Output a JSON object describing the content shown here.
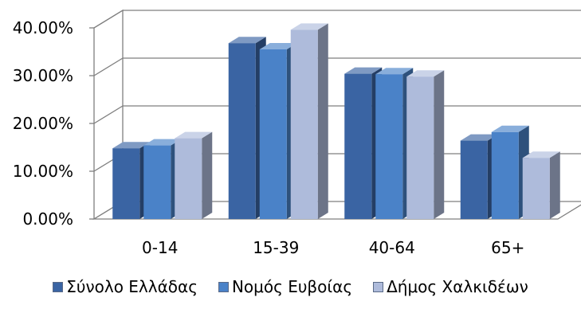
{
  "chart_data": {
    "type": "bar",
    "categories": [
      "0-14",
      "15-39",
      "40-64",
      "65+"
    ],
    "series": [
      {
        "name": "Σύνολο Ελλάδας",
        "color": "#3a64a3",
        "values": [
          14.8,
          36.8,
          30.4,
          16.4
        ]
      },
      {
        "name": "Νομός Ευβοίας",
        "color": "#4a82c8",
        "values": [
          15.4,
          35.5,
          30.3,
          18.2
        ]
      },
      {
        "name": "Δήμος Χαλκιδέων",
        "color": "#aebbdb",
        "values": [
          16.9,
          39.6,
          29.8,
          12.8
        ]
      }
    ],
    "y_ticks": [
      "0.00%",
      "10.00%",
      "20.00%",
      "30.00%",
      "40.00%"
    ],
    "ylim": [
      0,
      40
    ],
    "grid": true,
    "legend_position": "bottom",
    "title": "",
    "xlabel": "",
    "ylabel": ""
  }
}
